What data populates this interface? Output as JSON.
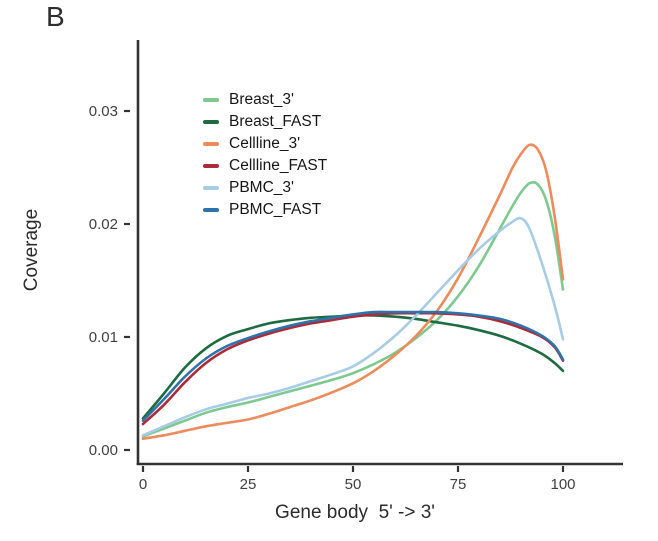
{
  "panel_label": "B",
  "colors": {
    "axis": "#333333",
    "tick_text": "#404040",
    "title_text": "#2b2b2b",
    "background": "#ffffff"
  },
  "chart_data": {
    "type": "line",
    "title": "",
    "xlabel": "Gene body  5' -> 3'",
    "ylabel": "Coverage",
    "xlim": [
      0,
      100
    ],
    "ylim": [
      0,
      0.03
    ],
    "grid": false,
    "legend_position": "inside-top-left",
    "xticks": [
      0,
      25,
      50,
      75,
      100
    ],
    "ytick_values": [
      0,
      0.01,
      0.02,
      0.03
    ],
    "ytick_labels": [
      "0.00",
      "0.01",
      "0.02",
      "0.03"
    ],
    "series": [
      {
        "name": "Breast_3'",
        "color": "#7ec98f",
        "x": [
          0,
          5,
          10,
          15,
          20,
          25,
          30,
          35,
          40,
          45,
          50,
          55,
          60,
          65,
          70,
          75,
          80,
          85,
          88,
          90,
          92,
          94,
          96,
          98,
          100
        ],
        "y": [
          0.0012,
          0.0019,
          0.0026,
          0.0033,
          0.0038,
          0.0042,
          0.0047,
          0.0052,
          0.0057,
          0.0062,
          0.0068,
          0.0076,
          0.0086,
          0.0099,
          0.0115,
          0.0136,
          0.0163,
          0.0196,
          0.0216,
          0.0228,
          0.0236,
          0.0235,
          0.0221,
          0.019,
          0.0142
        ]
      },
      {
        "name": "Breast_FAST",
        "color": "#1d6b40",
        "x": [
          0,
          5,
          10,
          15,
          20,
          25,
          30,
          35,
          40,
          45,
          50,
          55,
          60,
          65,
          70,
          75,
          80,
          85,
          90,
          95,
          98,
          100
        ],
        "y": [
          0.0028,
          0.005,
          0.0073,
          0.009,
          0.0101,
          0.0107,
          0.0112,
          0.0115,
          0.0117,
          0.0118,
          0.0119,
          0.0119,
          0.0118,
          0.0116,
          0.0113,
          0.011,
          0.0106,
          0.0101,
          0.0094,
          0.0085,
          0.0077,
          0.007
        ]
      },
      {
        "name": "Cellline_3'",
        "color": "#ec8b5c",
        "x": [
          0,
          5,
          10,
          15,
          20,
          25,
          30,
          35,
          40,
          45,
          50,
          55,
          60,
          65,
          70,
          75,
          80,
          85,
          88,
          90,
          92,
          94,
          96,
          98,
          100
        ],
        "y": [
          0.001,
          0.0013,
          0.0017,
          0.0021,
          0.0024,
          0.0027,
          0.0032,
          0.0038,
          0.0044,
          0.0051,
          0.0059,
          0.007,
          0.0084,
          0.0101,
          0.0123,
          0.0152,
          0.0188,
          0.0226,
          0.025,
          0.0262,
          0.027,
          0.0266,
          0.0247,
          0.0207,
          0.0151
        ]
      },
      {
        "name": "Cellline_FAST",
        "color": "#ad2a38",
        "x": [
          0,
          5,
          10,
          15,
          20,
          25,
          30,
          35,
          40,
          45,
          50,
          55,
          60,
          65,
          70,
          75,
          80,
          85,
          90,
          95,
          98,
          100
        ],
        "y": [
          0.0023,
          0.004,
          0.006,
          0.0077,
          0.0089,
          0.0097,
          0.0103,
          0.0108,
          0.0112,
          0.0115,
          0.0118,
          0.012,
          0.0121,
          0.0121,
          0.0121,
          0.012,
          0.0118,
          0.0114,
          0.0108,
          0.01,
          0.0091,
          0.0079
        ]
      },
      {
        "name": "PBMC_3'",
        "color": "#a8cce4",
        "x": [
          0,
          5,
          10,
          15,
          20,
          25,
          30,
          35,
          40,
          45,
          50,
          55,
          60,
          65,
          70,
          75,
          80,
          85,
          88,
          90,
          92,
          95,
          98,
          100
        ],
        "y": [
          0.0013,
          0.0021,
          0.0029,
          0.0036,
          0.0041,
          0.0046,
          0.005,
          0.0055,
          0.0061,
          0.0067,
          0.0074,
          0.0086,
          0.0101,
          0.0119,
          0.0139,
          0.0159,
          0.0178,
          0.0194,
          0.0202,
          0.0205,
          0.0196,
          0.0165,
          0.0128,
          0.0098
        ]
      },
      {
        "name": "PBMC_FAST",
        "color": "#2e73a9",
        "x": [
          0,
          5,
          10,
          15,
          20,
          25,
          30,
          35,
          40,
          45,
          50,
          55,
          60,
          65,
          70,
          75,
          80,
          85,
          90,
          95,
          98,
          100
        ],
        "y": [
          0.0026,
          0.0045,
          0.0065,
          0.0081,
          0.0092,
          0.0099,
          0.0105,
          0.011,
          0.0114,
          0.0117,
          0.012,
          0.0122,
          0.0122,
          0.0122,
          0.0122,
          0.0121,
          0.0119,
          0.0116,
          0.011,
          0.0101,
          0.0092,
          0.008
        ]
      }
    ]
  }
}
